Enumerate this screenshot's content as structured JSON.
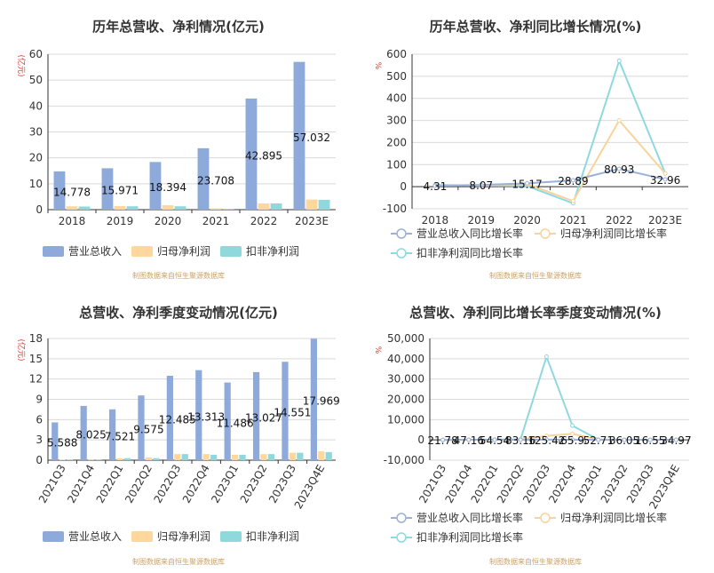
{
  "source_note": "制图数据来自恒生聚源数据库",
  "colors": {
    "revenue": "#8eaadb",
    "net_profit": "#fdd79b",
    "deducted_net_profit": "#8fd8dc",
    "revenue_line": "#9ab1d8",
    "net_line": "#f7d49b",
    "deducted_line": "#8ed9e0"
  },
  "chart_data": [
    {
      "type": "bar",
      "title": "历年总营收、净利情况(亿元)",
      "ylabel": "(亿元)",
      "ylim": [
        0,
        60
      ],
      "yticks": [
        0,
        10,
        20,
        30,
        40,
        50,
        60
      ],
      "categories": [
        "2018",
        "2019",
        "2020",
        "2021",
        "2022",
        "2023E"
      ],
      "series": [
        {
          "name": "营业总收入",
          "values": [
            14.778,
            15.971,
            18.394,
            23.708,
            42.895,
            57.032
          ]
        },
        {
          "name": "归母净利润",
          "values": [
            1.3,
            1.4,
            1.7,
            0.5,
            2.4,
            3.9
          ]
        },
        {
          "name": "扣非净利润",
          "values": [
            1.2,
            1.3,
            1.3,
            0.3,
            2.4,
            3.8
          ]
        }
      ],
      "labels": [
        "14.778",
        "15.971",
        "18.394",
        "23.708",
        "42.895",
        "57.032"
      ]
    },
    {
      "type": "line",
      "title": "历年总营收、净利同比增长情况(%)",
      "ylabel": "%",
      "ylim": [
        -100,
        600
      ],
      "yticks": [
        -100,
        0,
        100,
        200,
        300,
        400,
        500,
        600
      ],
      "categories": [
        "2018",
        "2019",
        "2020",
        "2021",
        "2022",
        "2023E"
      ],
      "series": [
        {
          "name": "营业总收入同比增长率",
          "values": [
            4.31,
            8.07,
            15.17,
            28.89,
            80.93,
            32.96
          ]
        },
        {
          "name": "归母净利润同比增长率",
          "values": [
            5,
            7,
            12,
            -65,
            300,
            60
          ]
        },
        {
          "name": "扣非净利润同比增长率",
          "values": [
            8,
            5,
            3,
            -75,
            570,
            60
          ]
        }
      ],
      "labels": [
        "4.31",
        "8.07",
        "15.17",
        "28.89",
        "80.93",
        "32.96"
      ]
    },
    {
      "type": "bar",
      "title": "总营收、净利季度变动情况(亿元)",
      "ylabel": "(亿元)",
      "ylim": [
        0,
        18
      ],
      "yticks": [
        0,
        3,
        6,
        9,
        12,
        15,
        18
      ],
      "yticklabels": [
        "0",
        "3",
        "6",
        "9",
        "12",
        "15",
        "18"
      ],
      "categories": [
        "2021Q3",
        "2021Q4",
        "2022Q1",
        "2022Q2",
        "2022Q3",
        "2022Q4",
        "2023Q1",
        "2023Q2",
        "2023Q3",
        "2023Q4E"
      ],
      "series": [
        {
          "name": "营业总收入",
          "values": [
            5.588,
            8.025,
            7.521,
            9.575,
            12.485,
            13.313,
            11.486,
            13.027,
            14.551,
            17.969
          ]
        },
        {
          "name": "归母净利润",
          "values": [
            0.1,
            0.05,
            0.3,
            0.4,
            0.9,
            0.9,
            0.8,
            0.9,
            1.1,
            1.3
          ]
        },
        {
          "name": "扣非净利润",
          "values": [
            0.1,
            0.05,
            0.3,
            0.3,
            0.9,
            0.8,
            0.8,
            0.9,
            1.1,
            1.2
          ]
        }
      ],
      "labels": [
        "5.588",
        "8.025",
        "7.521",
        "9.575",
        "12.485",
        "13.313",
        "11.486",
        "13.027",
        "14.551",
        "17.969"
      ]
    },
    {
      "type": "line",
      "title": "总营收、净利同比增长率季度变动情况(%)",
      "ylabel": "%",
      "ylim": [
        -10000,
        50000
      ],
      "yticks": [
        -10000,
        0,
        10000,
        20000,
        30000,
        40000,
        50000
      ],
      "yticklabels": [
        "-10,000",
        "0",
        "10,000",
        "20,000",
        "30,000",
        "40,000",
        "50,000"
      ],
      "categories": [
        "2021Q3",
        "2021Q4",
        "2022Q1",
        "2022Q2",
        "2022Q3",
        "2022Q4",
        "2023Q1",
        "2023Q2",
        "2023Q3",
        "2023Q4E"
      ],
      "series": [
        {
          "name": "营业总收入同比增长率",
          "values": [
            21.78,
            47.16,
            54.54,
            83.16,
            125.42,
            65.9,
            52.71,
            36.05,
            16.55,
            34.97
          ]
        },
        {
          "name": "归母净利润同比增长率",
          "values": [
            -50,
            50,
            100,
            200,
            2000,
            3000,
            200,
            100,
            80,
            100
          ]
        },
        {
          "name": "扣非净利润同比增长率",
          "values": [
            -100,
            100,
            200,
            300,
            41000,
            7000,
            100,
            50,
            20,
            60
          ]
        }
      ],
      "labels": [
        "21.78",
        "47.16",
        "54.54",
        "83.16",
        "125.42",
        "65.9",
        "52.71",
        "36.05",
        "16.55",
        "34.97"
      ]
    }
  ]
}
